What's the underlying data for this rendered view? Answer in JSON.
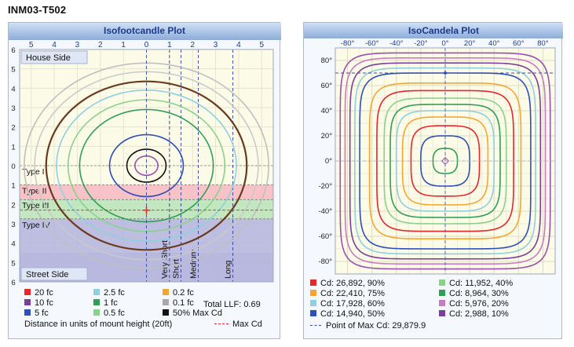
{
  "page": {
    "title": "INM03-T502"
  },
  "isofootcandle": {
    "title": "Isofootcandle Plot",
    "top_ticks": [
      "5",
      "4",
      "3",
      "2",
      "1",
      "0",
      "1",
      "2",
      "3",
      "4",
      "5"
    ],
    "left_ticks": [
      "6",
      "5",
      "4",
      "3",
      "2",
      "1",
      "0",
      "1",
      "2",
      "3",
      "4",
      "5",
      "6"
    ],
    "house_label": "House Side",
    "street_label": "Street Side",
    "type_bands": [
      {
        "label": "Type I",
        "from": 0,
        "to": 1,
        "color": "#ffffff"
      },
      {
        "label": "Type II",
        "from": 1,
        "to": 1.75,
        "color": "#f7b9c2"
      },
      {
        "label": "Type III",
        "from": 1.75,
        "to": 2.75,
        "color": "#b9e3b8"
      },
      {
        "label": "Type IV",
        "from": 2.75,
        "to": 6,
        "color": "#b3b3df"
      }
    ],
    "verticals": [
      {
        "label": "Very Short",
        "x": 1
      },
      {
        "label": "Short",
        "x": 1.5
      },
      {
        "label": "Medium",
        "x": 2.25
      },
      {
        "label": "Long",
        "x": 3.75
      }
    ],
    "max_cd_y": 2.3,
    "legend": [
      {
        "label": "20 fc",
        "color": "#e8262b"
      },
      {
        "label": "2.5 fc",
        "color": "#8fcfe0"
      },
      {
        "label": "0.2 fc",
        "color": "#f5a632"
      },
      {
        "label": "10 fc",
        "color": "#7b3f9b"
      },
      {
        "label": "1 fc",
        "color": "#2f9e56"
      },
      {
        "label": "0.1 fc",
        "color": "#a9a9a9"
      },
      {
        "label": "5 fc",
        "color": "#2e4fb8"
      },
      {
        "label": "0.5 fc",
        "color": "#8ad18a"
      },
      {
        "label": "50% Max Cd",
        "color": "#111111"
      }
    ],
    "total_llf": "Total LLF: 0.69",
    "distance_note": "Distance in units of mount height (20ft)",
    "max_cd_label": "Max Cd",
    "circles": [
      {
        "r": 0.5,
        "color": "#9b4fb0"
      },
      {
        "r": 0.85,
        "color": "#111111"
      },
      {
        "r": 1.6,
        "color": "#2e4fb8"
      },
      {
        "r": 3.4,
        "color": "#8ad18a"
      },
      {
        "r": 2.9,
        "color": "#2f9e56"
      },
      {
        "r": 3.9,
        "color": "#8fcfe0"
      },
      {
        "r": 4.35,
        "color": "#6b3a1e"
      },
      {
        "r": 4.85,
        "color": "#c9c9c9"
      },
      {
        "r": 5.3,
        "color": "#bfbfbf"
      }
    ]
  },
  "isocandela": {
    "title": "IsoCandela Plot",
    "x_ticks": [
      "-80°",
      "-60°",
      "-40°",
      "-20°",
      "0°",
      "20°",
      "40°",
      "60°",
      "80°"
    ],
    "y_ticks": [
      "80°",
      "60°",
      "40°",
      "20°",
      "0°",
      "-20°",
      "-40°",
      "-60°",
      "-80°"
    ],
    "max_cd_angle": 70,
    "contours": [
      {
        "half": 10,
        "color": "#2f9e56"
      },
      {
        "half": 20,
        "color": "#2e4fb8"
      },
      {
        "half": 28,
        "color": "#e8262b"
      },
      {
        "half": 35,
        "color": "#f5a632"
      },
      {
        "half": 40,
        "color": "#8fcfe0"
      },
      {
        "half": 45,
        "color": "#2f9e56"
      },
      {
        "half": 50,
        "color": "#8ad18a"
      },
      {
        "half": 56,
        "color": "#e8262b"
      },
      {
        "half": 62,
        "color": "#f5a632"
      },
      {
        "half": 70,
        "color": "#2e4fb8"
      },
      {
        "half": 74,
        "color": "#8fcfe0"
      },
      {
        "half": 78,
        "color": "#7b3f9b"
      },
      {
        "half": 82,
        "color": "#c77bc4"
      },
      {
        "half": 86,
        "color": "#9b4fb0"
      }
    ],
    "legend": [
      {
        "label": "Cd: 26,892, 90%",
        "color": "#e8262b"
      },
      {
        "label": "Cd: 11,952, 40%",
        "color": "#8ad18a"
      },
      {
        "label": "Cd: 22,410, 75%",
        "color": "#f5a632"
      },
      {
        "label": "Cd: 8,964, 30%",
        "color": "#2f9e56"
      },
      {
        "label": "Cd: 17,928, 60%",
        "color": "#8fcfe0"
      },
      {
        "label": "Cd: 5,976, 20%",
        "color": "#c77bc4"
      },
      {
        "label": "Cd: 14,940, 50%",
        "color": "#2e4fb8"
      },
      {
        "label": "Cd: 2,988, 10%",
        "color": "#7b3f9b"
      }
    ],
    "max_point_label": "Point of Max Cd: 29,879.9"
  },
  "chart_data": [
    {
      "type": "line",
      "title": "Isofootcandle Plot",
      "xlabel": "Distance in units of mount height (20ft)",
      "xlim": [
        -6,
        6
      ],
      "ylim": [
        -6,
        6
      ],
      "series": [
        {
          "name": "20 fc"
        },
        {
          "name": "10 fc"
        },
        {
          "name": "5 fc"
        },
        {
          "name": "2.5 fc"
        },
        {
          "name": "1 fc"
        },
        {
          "name": "0.5 fc"
        },
        {
          "name": "0.2 fc"
        },
        {
          "name": "0.1 fc"
        },
        {
          "name": "50% Max Cd"
        }
      ],
      "note_value": "Total LLF: 0.69"
    },
    {
      "type": "line",
      "title": "IsoCandela Plot",
      "xlim": [
        -90,
        90
      ],
      "ylim": [
        -90,
        90
      ],
      "series": [
        {
          "name": "Cd: 26,892, 90%"
        },
        {
          "name": "Cd: 22,410, 75%"
        },
        {
          "name": "Cd: 17,928, 60%"
        },
        {
          "name": "Cd: 14,940, 50%"
        },
        {
          "name": "Cd: 11,952, 40%"
        },
        {
          "name": "Cd: 8,964, 30%"
        },
        {
          "name": "Cd: 5,976, 20%"
        },
        {
          "name": "Cd: 2,988, 10%"
        }
      ],
      "max_cd": "29,879.9"
    }
  ]
}
